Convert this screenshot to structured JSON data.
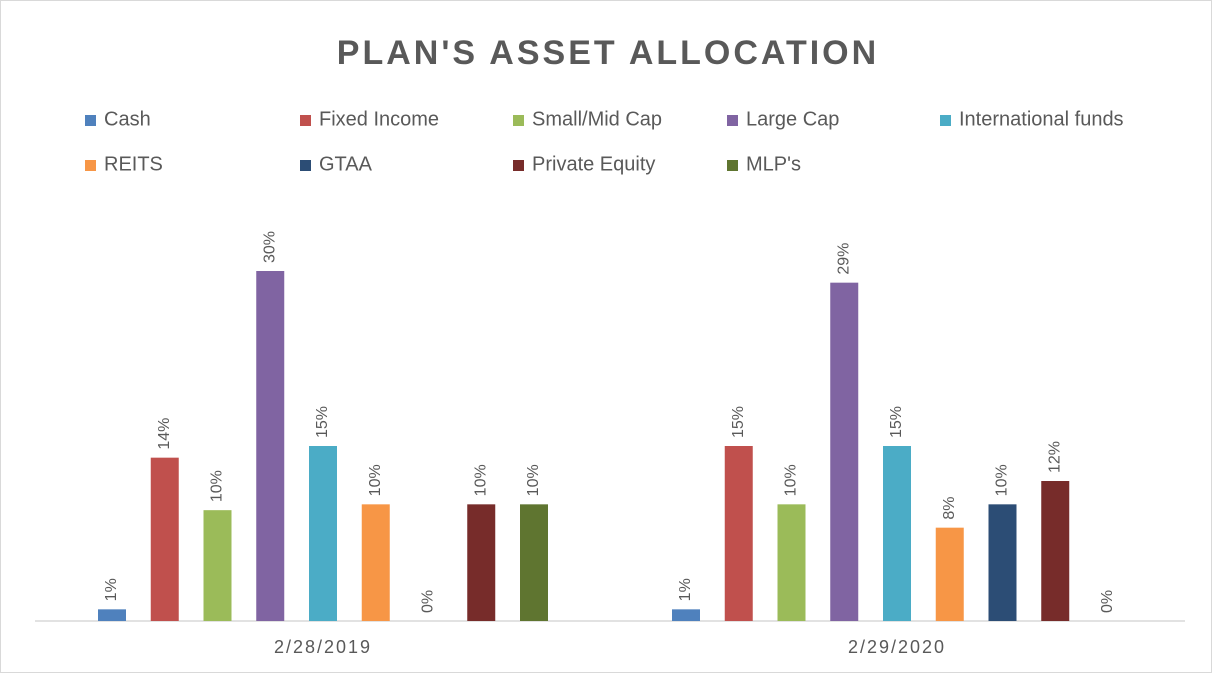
{
  "chart_data": {
    "type": "bar",
    "title": "PLAN'S ASSET ALLOCATION",
    "categories": [
      "2/28/2019",
      "2/29/2020"
    ],
    "series": [
      {
        "name": "Cash",
        "color": "#4f81bd",
        "values": [
          1,
          1
        ],
        "value_labels": [
          "1%",
          "1%"
        ]
      },
      {
        "name": "Fixed Income",
        "color": "#c0504d",
        "values": [
          14,
          15
        ],
        "value_labels": [
          "14%",
          "15%"
        ]
      },
      {
        "name": "Small/Mid Cap",
        "color": "#9bbb59",
        "values": [
          9.5,
          10
        ],
        "value_labels": [
          "10%",
          "10%"
        ]
      },
      {
        "name": "Large Cap",
        "color": "#8064a2",
        "values": [
          30,
          29
        ],
        "value_labels": [
          "30%",
          "29%"
        ]
      },
      {
        "name": "International funds",
        "color": "#4bacc6",
        "values": [
          15,
          15
        ],
        "value_labels": [
          "15%",
          "15%"
        ]
      },
      {
        "name": "REITS",
        "color": "#f79646",
        "values": [
          10,
          8
        ],
        "value_labels": [
          "10%",
          "8%"
        ]
      },
      {
        "name": "GTAA",
        "color": "#2c4d75",
        "values": [
          0,
          10
        ],
        "value_labels": [
          "0%",
          "10%"
        ]
      },
      {
        "name": "Private Equity",
        "color": "#772c2a",
        "values": [
          10,
          12
        ],
        "value_labels": [
          "10%",
          "12%"
        ]
      },
      {
        "name": "MLP's",
        "color": "#5f7530",
        "values": [
          10,
          0
        ],
        "value_labels": [
          "10%",
          "0%"
        ]
      }
    ]
  }
}
